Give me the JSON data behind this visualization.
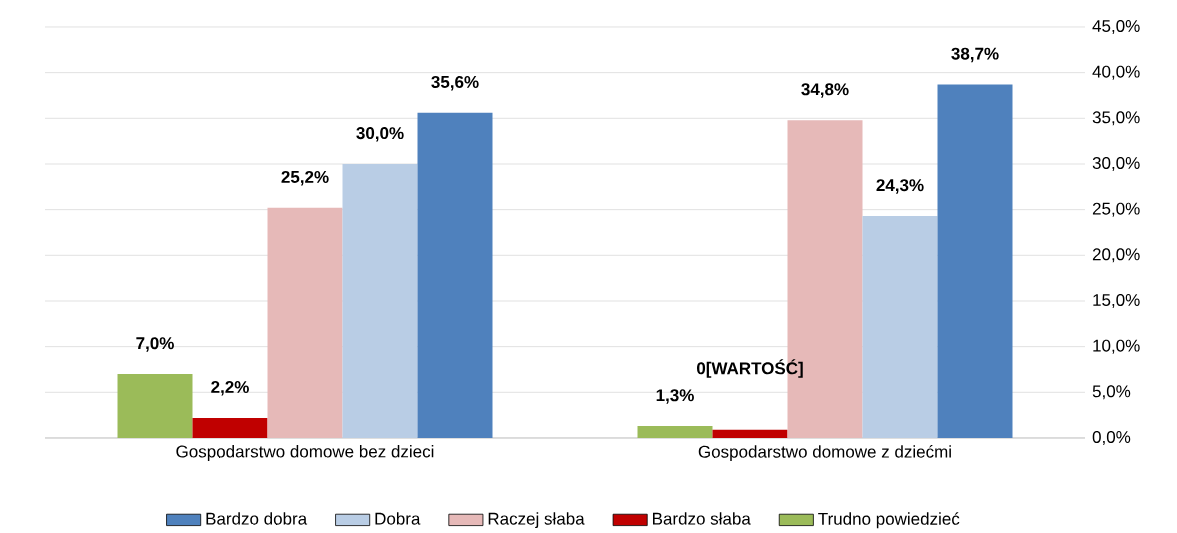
{
  "chart_data": {
    "type": "bar",
    "categories": [
      "Gospodarstwo domowe bez dzieci",
      "Gospodarstwo domowe z dziećmi"
    ],
    "series": [
      {
        "name": "Trudno powiedzieć",
        "color": "#9bbb59",
        "values": [
          7.0,
          1.3
        ],
        "value_labels": [
          "7,0%",
          "1,3%"
        ]
      },
      {
        "name": "Bardzo słaba",
        "color": "#c00000",
        "values": [
          2.2,
          0.9
        ],
        "value_labels": [
          "2,2%",
          null
        ]
      },
      {
        "name": "Raczej słaba",
        "color": "#e6b9b8",
        "values": [
          25.2,
          34.8
        ],
        "value_labels": [
          "25,2%",
          "34,8%"
        ]
      },
      {
        "name": "Dobra",
        "color": "#b9cde5",
        "values": [
          30.0,
          24.3
        ],
        "value_labels": [
          "30,0%",
          "24,3%"
        ]
      },
      {
        "name": "Bardzo dobra",
        "color": "#4f81bd",
        "values": [
          35.6,
          38.7
        ],
        "value_labels": [
          "35,6%",
          "38,7%"
        ]
      }
    ],
    "ylim": [
      0,
      45
    ],
    "yticks": [
      {
        "value": 0,
        "label": "0,0%"
      },
      {
        "value": 5,
        "label": "5,0%"
      },
      {
        "value": 10,
        "label": "10,0%"
      },
      {
        "value": 15,
        "label": "15,0%"
      },
      {
        "value": 20,
        "label": "20,0%"
      },
      {
        "value": 25,
        "label": "25,0%"
      },
      {
        "value": 30,
        "label": "30,0%"
      },
      {
        "value": 35,
        "label": "35,0%"
      },
      {
        "value": 40,
        "label": "40,0%"
      },
      {
        "value": 45,
        "label": "45,0%"
      }
    ],
    "annotations": [
      "0[WARTOŚĆ]"
    ],
    "grid": "y",
    "legend": "bottom"
  }
}
